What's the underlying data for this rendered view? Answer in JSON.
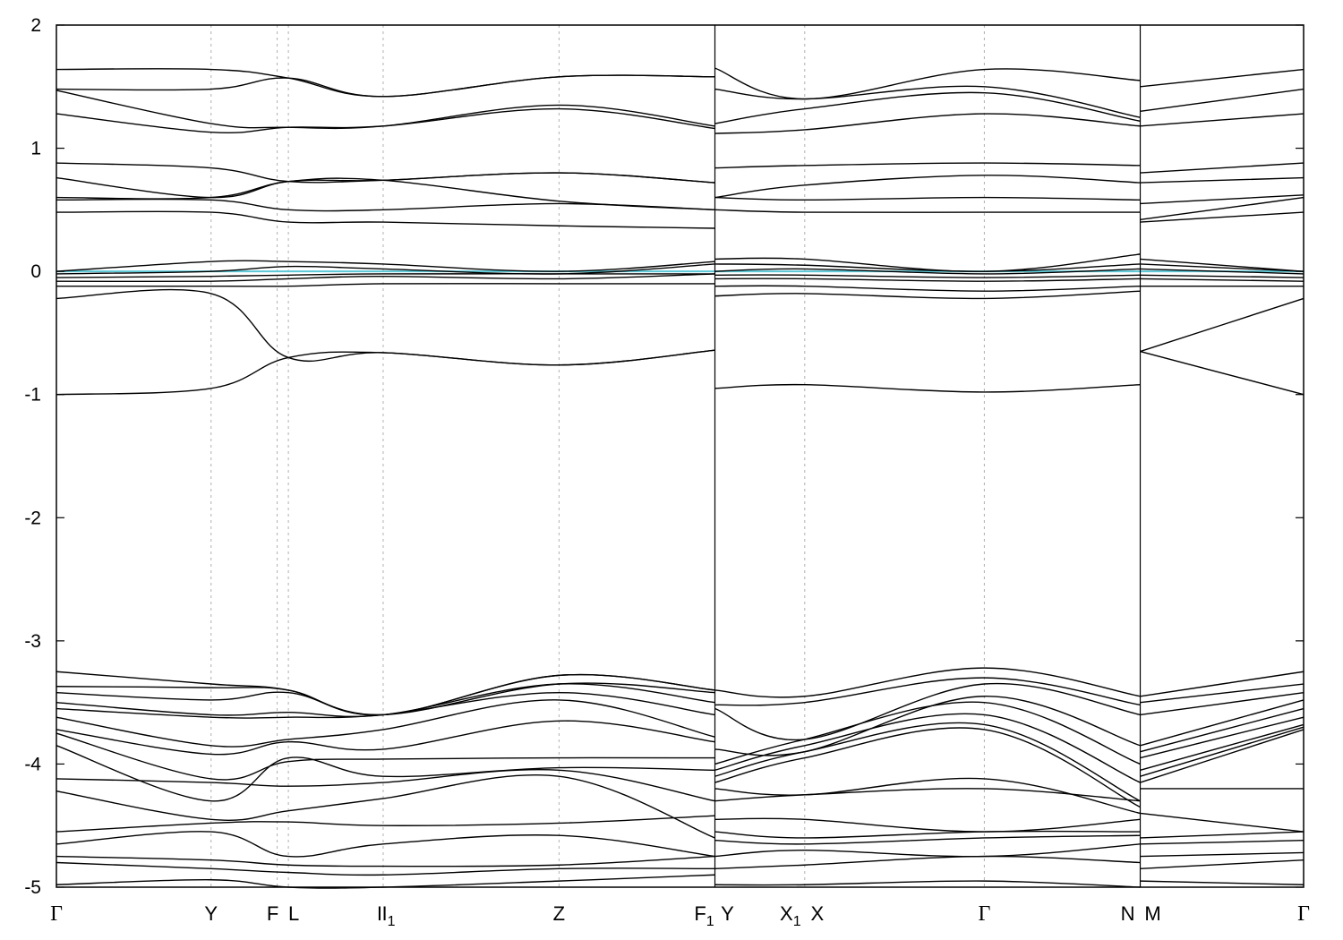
{
  "chart_data": {
    "type": "line",
    "title": "",
    "xlabel": "",
    "ylabel": "",
    "ylim": [
      -5,
      2
    ],
    "y_ticks": [
      2,
      1,
      0,
      -1,
      -2,
      -3,
      -4,
      -5
    ],
    "y_tick_labels": [
      "2",
      "1",
      "0",
      "-1",
      "-2",
      "-3",
      "-4",
      "-5"
    ],
    "grid": "dashed vertical lines at high-symmetry points",
    "fermi_level": 0,
    "colors": {
      "bands": "#000000",
      "fermi": "#5bc8d8",
      "grid": "#b0b0b0"
    },
    "high_symmetry_points": [
      {
        "label": "Γ",
        "sub": "",
        "x": 0.0
      },
      {
        "label": "Y",
        "sub": "",
        "x": 1.24
      },
      {
        "label": "F",
        "sub": "",
        "x": 1.77
      },
      {
        "label": "L",
        "sub": "",
        "x": 1.86
      },
      {
        "label": "I",
        "sub": "",
        "x": 2.62
      },
      {
        "label": "I",
        "sub": "1",
        "x": 2.62
      },
      {
        "label": "Z",
        "sub": "",
        "x": 4.03
      },
      {
        "label": "F",
        "sub": "1",
        "x": 5.28
      },
      {
        "label": "Y",
        "sub": "",
        "x": 5.28
      },
      {
        "label": "X",
        "sub": "1",
        "x": 6.0
      },
      {
        "label": "X",
        "sub": "",
        "x": 6.0
      },
      {
        "label": "Γ",
        "sub": "",
        "x": 7.44
      },
      {
        "label": "N",
        "sub": "",
        "x": 8.69
      },
      {
        "label": "M",
        "sub": "",
        "x": 8.69
      },
      {
        "label": "Γ",
        "sub": "",
        "x": 10.0
      }
    ],
    "segments": [
      {
        "x": [
          0.0,
          1.24,
          1.86,
          2.62,
          4.03,
          5.28
        ],
        "bands": [
          [
            -4.98,
            -4.94,
            -5.0,
            -5.0,
            -4.95,
            -4.9
          ],
          [
            -4.8,
            -4.85,
            -4.88,
            -4.9,
            -4.85,
            -4.85
          ],
          [
            -4.75,
            -4.78,
            -4.82,
            -4.83,
            -4.82,
            -4.75
          ],
          [
            -4.65,
            -4.55,
            -4.75,
            -4.65,
            -4.58,
            -4.75
          ],
          [
            -4.55,
            -4.48,
            -4.47,
            -4.5,
            -4.48,
            -4.42
          ],
          [
            -4.22,
            -4.45,
            -4.38,
            -4.28,
            -4.1,
            -4.6
          ],
          [
            -4.12,
            -4.15,
            -4.18,
            -4.15,
            -4.05,
            -4.3
          ],
          [
            -3.85,
            -4.3,
            -3.95,
            -4.1,
            -4.03,
            -4.05
          ],
          [
            -3.75,
            -4.12,
            -3.98,
            -3.96,
            -3.95,
            -3.95
          ],
          [
            -3.72,
            -3.92,
            -3.82,
            -3.88,
            -3.65,
            -3.82
          ],
          [
            -3.62,
            -3.85,
            -3.8,
            -3.72,
            -3.48,
            -3.78
          ],
          [
            -3.55,
            -3.62,
            -3.62,
            -3.6,
            -3.42,
            -3.6
          ],
          [
            -3.5,
            -3.6,
            -3.58,
            -3.6,
            -3.35,
            -3.5
          ],
          [
            -3.42,
            -3.48,
            -3.42,
            -3.6,
            -3.35,
            -3.42
          ],
          [
            -3.37,
            -3.38,
            -3.4,
            -3.6,
            -3.28,
            -3.4
          ],
          [
            -3.25,
            -3.35,
            -3.4,
            -3.6,
            -3.28,
            -3.4
          ],
          [
            -1.0,
            -0.95,
            -0.7,
            -0.66,
            -0.76,
            -0.64
          ],
          [
            -0.22,
            -0.18,
            -0.7,
            -0.66,
            -0.76,
            -0.64
          ],
          [
            -0.12,
            -0.12,
            -0.12,
            -0.1,
            -0.1,
            -0.1
          ],
          [
            -0.08,
            -0.08,
            -0.06,
            -0.04,
            -0.06,
            -0.02
          ],
          [
            -0.05,
            -0.04,
            -0.03,
            -0.02,
            -0.02,
            -0.02
          ],
          [
            -0.02,
            0.0,
            0.04,
            0.02,
            -0.02,
            0.06
          ],
          [
            0.0,
            0.08,
            0.08,
            0.06,
            0.0,
            0.08
          ],
          [
            0.48,
            0.48,
            0.4,
            0.4,
            0.37,
            0.35
          ],
          [
            0.58,
            0.58,
            0.5,
            0.5,
            0.55,
            0.5
          ],
          [
            0.6,
            0.6,
            0.73,
            0.74,
            0.8,
            0.72
          ],
          [
            0.76,
            0.6,
            0.73,
            0.74,
            0.57,
            0.5
          ],
          [
            0.88,
            0.84,
            0.73,
            0.74,
            0.8,
            0.72
          ],
          [
            1.28,
            1.13,
            1.17,
            1.18,
            1.32,
            1.16
          ],
          [
            1.47,
            1.2,
            1.17,
            1.18,
            1.35,
            1.18
          ],
          [
            1.48,
            1.48,
            1.57,
            1.42,
            1.58,
            1.58
          ],
          [
            1.64,
            1.64,
            1.57,
            1.42,
            1.58,
            1.58
          ]
        ]
      },
      {
        "x": [
          5.28,
          6.0,
          7.44,
          8.69
        ],
        "bands": [
          [
            -4.98,
            -4.98,
            -4.95,
            -5.0
          ],
          [
            -4.85,
            -4.82,
            -4.75,
            -4.8
          ],
          [
            -4.75,
            -4.7,
            -4.75,
            -4.65
          ],
          [
            -4.62,
            -4.65,
            -4.6,
            -4.58
          ],
          [
            -4.55,
            -4.6,
            -4.55,
            -4.55
          ],
          [
            -4.45,
            -4.45,
            -4.55,
            -4.45
          ],
          [
            -4.3,
            -4.25,
            -4.2,
            -4.3
          ],
          [
            -4.2,
            -4.25,
            -4.12,
            -4.4
          ],
          [
            -4.15,
            -3.95,
            -3.72,
            -4.35
          ],
          [
            -4.1,
            -3.9,
            -3.68,
            -4.3
          ],
          [
            -4.05,
            -3.85,
            -3.6,
            -4.15
          ],
          [
            -4.0,
            -3.8,
            -3.5,
            -4.0
          ],
          [
            -3.88,
            -3.9,
            -3.45,
            -3.85
          ],
          [
            -3.55,
            -3.8,
            -3.35,
            -3.6
          ],
          [
            -3.52,
            -3.5,
            -3.3,
            -3.52
          ],
          [
            -3.4,
            -3.45,
            -3.22,
            -3.45
          ],
          [
            -0.95,
            -0.92,
            -0.98,
            -0.92
          ],
          [
            -0.2,
            -0.18,
            -0.22,
            -0.16
          ],
          [
            -0.12,
            -0.12,
            -0.16,
            -0.12
          ],
          [
            -0.06,
            -0.06,
            -0.08,
            -0.06
          ],
          [
            -0.03,
            -0.03,
            -0.05,
            -0.03
          ],
          [
            0.0,
            0.02,
            -0.02,
            0.02
          ],
          [
            0.06,
            0.05,
            0.0,
            0.06
          ],
          [
            0.1,
            0.1,
            0.0,
            0.14
          ],
          [
            0.5,
            0.48,
            0.48,
            0.48
          ],
          [
            0.6,
            0.58,
            0.6,
            0.58
          ],
          [
            0.6,
            0.7,
            0.78,
            0.72
          ],
          [
            0.84,
            0.86,
            0.88,
            0.86
          ],
          [
            1.12,
            1.15,
            1.28,
            1.18
          ],
          [
            1.2,
            1.32,
            1.45,
            1.22
          ],
          [
            1.48,
            1.4,
            1.5,
            1.25
          ],
          [
            1.65,
            1.4,
            1.64,
            1.55
          ]
        ]
      },
      {
        "x": [
          8.69,
          10.0
        ],
        "bands": [
          [
            -4.95,
            -4.98
          ],
          [
            -4.85,
            -4.78
          ],
          [
            -4.75,
            -4.72
          ],
          [
            -4.65,
            -4.62
          ],
          [
            -4.6,
            -4.55
          ],
          [
            -4.4,
            -4.55
          ],
          [
            -4.2,
            -4.2
          ],
          [
            -4.15,
            -3.72
          ],
          [
            -4.1,
            -3.7
          ],
          [
            -4.05,
            -3.68
          ],
          [
            -3.95,
            -3.62
          ],
          [
            -3.9,
            -3.55
          ],
          [
            -3.85,
            -3.48
          ],
          [
            -3.6,
            -3.42
          ],
          [
            -3.5,
            -3.35
          ],
          [
            -3.45,
            -3.25
          ],
          [
            -0.65,
            -1.0
          ],
          [
            -0.65,
            -0.22
          ],
          [
            -0.12,
            -0.12
          ],
          [
            -0.06,
            -0.08
          ],
          [
            -0.03,
            -0.05
          ],
          [
            0.02,
            -0.02
          ],
          [
            0.06,
            0.0
          ],
          [
            0.1,
            0.0
          ],
          [
            0.4,
            0.48
          ],
          [
            0.42,
            0.6
          ],
          [
            0.55,
            0.62
          ],
          [
            0.72,
            0.76
          ],
          [
            0.8,
            0.88
          ],
          [
            1.18,
            1.28
          ],
          [
            1.3,
            1.48
          ],
          [
            1.5,
            1.64
          ]
        ]
      }
    ]
  }
}
